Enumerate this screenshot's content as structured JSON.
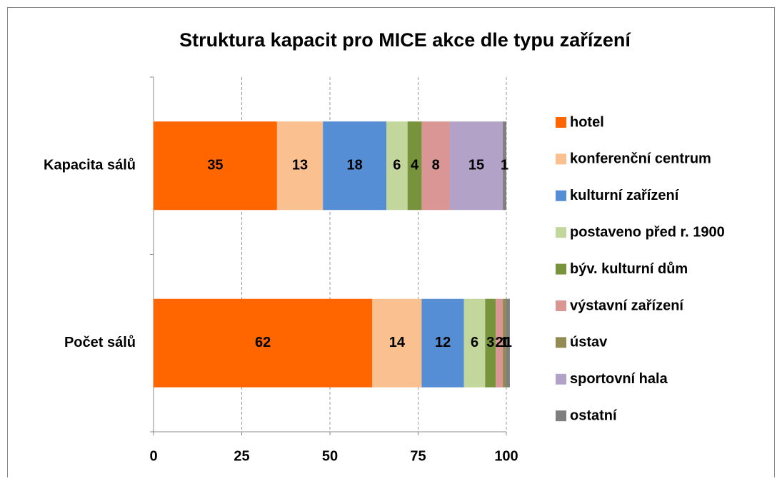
{
  "chart_data": {
    "type": "stacked-barh",
    "title": "Struktura kapacit  pro MICE akce dle typu zařízení",
    "categories": [
      "Kapacita sálů",
      "Počet sálů"
    ],
    "series": [
      {
        "name": "hotel",
        "color": "#ff6600",
        "values": [
          35,
          62
        ]
      },
      {
        "name": "konferenční centrum",
        "color": "#fac090",
        "values": [
          13,
          14
        ]
      },
      {
        "name": "kulturní zařízení",
        "color": "#558ed5",
        "values": [
          18,
          12
        ]
      },
      {
        "name": "postaveno před r. 1900",
        "color": "#c3d69b",
        "values": [
          6,
          6
        ]
      },
      {
        "name": "býv. kulturní dům",
        "color": "#77933c",
        "values": [
          4,
          3
        ]
      },
      {
        "name": "výstavní zařízení",
        "color": "#d99694",
        "values": [
          8,
          2
        ]
      },
      {
        "name": "ústav",
        "color": "#948a54",
        "values": [
          null,
          1
        ]
      },
      {
        "name": "sportovní hala",
        "color": "#b3a2c7",
        "values": [
          15,
          0
        ]
      },
      {
        "name": "ostatní",
        "color": "#7f7f7f",
        "values": [
          1,
          1
        ]
      }
    ],
    "xlim": [
      0,
      100
    ],
    "xticks": [
      0,
      25,
      50,
      75,
      100
    ],
    "grid": true,
    "legend": "right"
  }
}
